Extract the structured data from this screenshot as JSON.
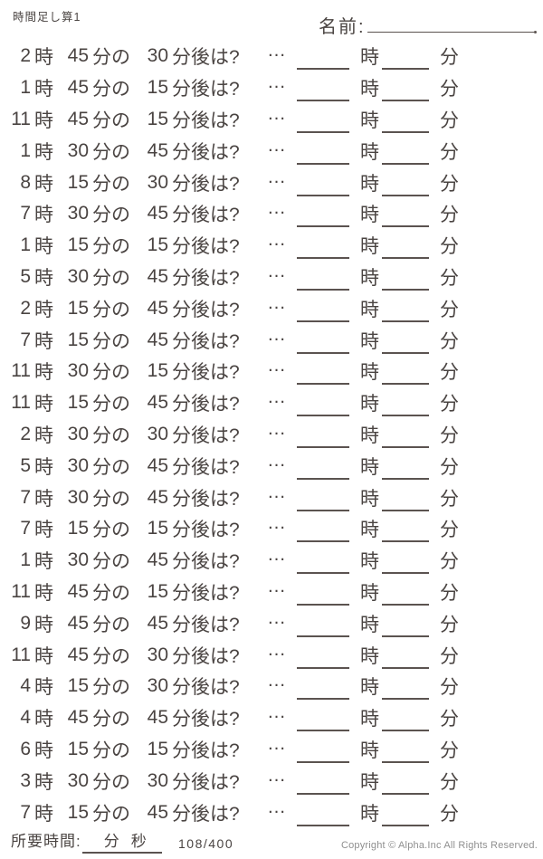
{
  "page": {
    "title": "時間足し算1",
    "name_label": "名前:",
    "hour_unit": "時",
    "minute_particle": "分の",
    "after_question": "分後は?",
    "ellipsis": "…",
    "answer_hour_unit": "時",
    "answer_minute_unit": "分"
  },
  "problems": [
    {
      "hour": "2",
      "minute": "45",
      "delta": "30"
    },
    {
      "hour": "1",
      "minute": "45",
      "delta": "15"
    },
    {
      "hour": "11",
      "minute": "45",
      "delta": "15"
    },
    {
      "hour": "1",
      "minute": "30",
      "delta": "45"
    },
    {
      "hour": "8",
      "minute": "15",
      "delta": "30"
    },
    {
      "hour": "7",
      "minute": "30",
      "delta": "45"
    },
    {
      "hour": "1",
      "minute": "15",
      "delta": "15"
    },
    {
      "hour": "5",
      "minute": "30",
      "delta": "45"
    },
    {
      "hour": "2",
      "minute": "15",
      "delta": "45"
    },
    {
      "hour": "7",
      "minute": "15",
      "delta": "45"
    },
    {
      "hour": "11",
      "minute": "30",
      "delta": "15"
    },
    {
      "hour": "11",
      "minute": "15",
      "delta": "45"
    },
    {
      "hour": "2",
      "minute": "30",
      "delta": "30"
    },
    {
      "hour": "5",
      "minute": "30",
      "delta": "45"
    },
    {
      "hour": "7",
      "minute": "30",
      "delta": "45"
    },
    {
      "hour": "7",
      "minute": "15",
      "delta": "15"
    },
    {
      "hour": "1",
      "minute": "30",
      "delta": "45"
    },
    {
      "hour": "11",
      "minute": "45",
      "delta": "15"
    },
    {
      "hour": "9",
      "minute": "45",
      "delta": "45"
    },
    {
      "hour": "11",
      "minute": "45",
      "delta": "30"
    },
    {
      "hour": "4",
      "minute": "15",
      "delta": "30"
    },
    {
      "hour": "4",
      "minute": "45",
      "delta": "45"
    },
    {
      "hour": "6",
      "minute": "15",
      "delta": "15"
    },
    {
      "hour": "3",
      "minute": "30",
      "delta": "30"
    },
    {
      "hour": "7",
      "minute": "15",
      "delta": "45"
    }
  ],
  "footer": {
    "elapsed_label": "所要時間:",
    "minutes_label": "分",
    "seconds_label": "秒",
    "page_number": "108/400",
    "copyright": "Copyright © Alpha.Inc All Rights Reserved."
  },
  "colors": {
    "text": "#4a4442",
    "line": "#5b5350",
    "muted": "#8f8f8f",
    "background": "#ffffff"
  }
}
